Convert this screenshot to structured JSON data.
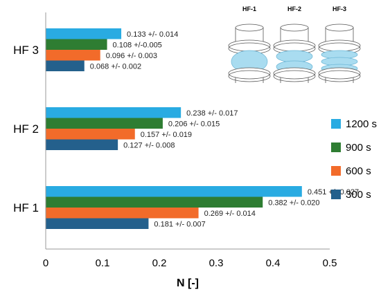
{
  "chart_data": {
    "type": "bar",
    "orientation": "horizontal",
    "categories": [
      "HF 1",
      "HF 2",
      "HF 3"
    ],
    "series": [
      {
        "name": "1200 s",
        "color": "#29abe2",
        "values": [
          0.451,
          0.238,
          0.133
        ],
        "labels": [
          "0.451 +/- 0.027",
          "0.238 +/- 0.017",
          "0.133 +/- 0.014"
        ]
      },
      {
        "name": "900 s",
        "color": "#2e7d32",
        "values": [
          0.382,
          0.206,
          0.108
        ],
        "labels": [
          "0.382 +/- 0.020",
          "0.206 +/- 0.015",
          "0.108 +/-0.005"
        ]
      },
      {
        "name": "600 s",
        "color": "#f26b2a",
        "values": [
          0.269,
          0.157,
          0.096
        ],
        "labels": [
          "0.269 +/- 0.014",
          "0.157 +/- 0.019",
          "0.096 +/- 0.003"
        ]
      },
      {
        "name": "300 s",
        "color": "#24608c",
        "values": [
          0.181,
          0.127,
          0.068
        ],
        "labels": [
          "0.181 +/- 0.007",
          "0.127 +/- 0.008",
          "0.068 +/- 0.002"
        ]
      }
    ],
    "xlabel": "N [-]",
    "ylabel": "",
    "xlim": [
      0,
      0.5
    ],
    "xticks": [
      "0",
      "0.1",
      "0.2",
      "0.3",
      "0.4",
      "0.5"
    ],
    "grid": false,
    "legend_position": "right",
    "inset": {
      "labels": [
        "HF-1",
        "HF-2",
        "HF-3"
      ],
      "wet_layers": [
        1,
        2,
        3
      ]
    }
  }
}
